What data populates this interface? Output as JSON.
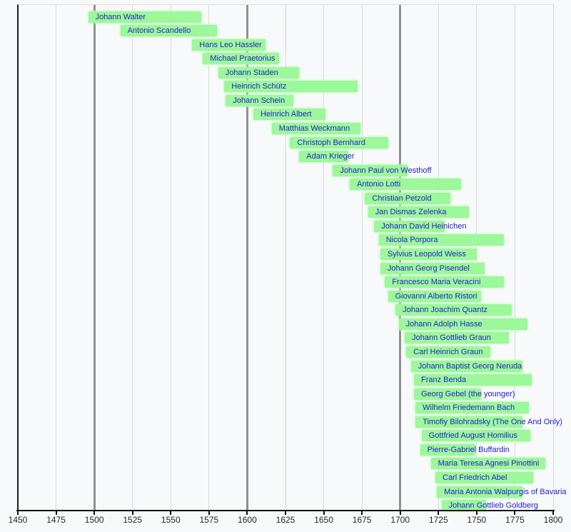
{
  "chart_data": {
    "type": "bar",
    "variant": "timeline-lifespan-gantt",
    "title": "",
    "xlabel": "",
    "ylabel": "",
    "x_axis": {
      "min": 1450,
      "max": 1800,
      "tick_interval": 25,
      "ticks": [
        1450,
        1475,
        1500,
        1525,
        1550,
        1575,
        1600,
        1625,
        1650,
        1675,
        1700,
        1725,
        1750,
        1775,
        1800
      ],
      "axis_line_year": 1450,
      "major_gridline_years": [
        1500,
        1600,
        1700
      ],
      "grid": true,
      "legend": "none"
    },
    "bars": [
      {
        "label": "Johann Walter",
        "start": 1496,
        "end": 1570
      },
      {
        "label": "Antonio Scandello",
        "start": 1517,
        "end": 1580
      },
      {
        "label": "Hans Leo Hassler",
        "start": 1564,
        "end": 1612
      },
      {
        "label": "Michael Praetorius",
        "start": 1571,
        "end": 1621
      },
      {
        "label": "Johann Staden",
        "start": 1581,
        "end": 1634
      },
      {
        "label": "Heinrich Schütz",
        "start": 1585,
        "end": 1672
      },
      {
        "label": "Johann Schein",
        "start": 1586,
        "end": 1630
      },
      {
        "label": "Heinrich Albert",
        "start": 1604,
        "end": 1651
      },
      {
        "label": "Matthias Weckmann",
        "start": 1616,
        "end": 1674
      },
      {
        "label": "Christoph Bernhard",
        "start": 1628,
        "end": 1692
      },
      {
        "label": "Adam Krieger",
        "start": 1634,
        "end": 1666
      },
      {
        "label": "Johann Paul von Westhoff",
        "start": 1656,
        "end": 1705
      },
      {
        "label": "Antonio Lotti",
        "start": 1667,
        "end": 1740
      },
      {
        "label": "Christian Petzold",
        "start": 1677,
        "end": 1733
      },
      {
        "label": "Jan Dismas Zelenka",
        "start": 1679,
        "end": 1745
      },
      {
        "label": "Johann David Heinichen",
        "start": 1683,
        "end": 1729
      },
      {
        "label": "Nicola Porpora",
        "start": 1686,
        "end": 1768
      },
      {
        "label": "Sylvius Leopold Weiss",
        "start": 1687,
        "end": 1750
      },
      {
        "label": "Johann Georg Pisendel",
        "start": 1687,
        "end": 1755
      },
      {
        "label": "Francesco Maria Veracini",
        "start": 1690,
        "end": 1768
      },
      {
        "label": "Giovanni Alberto Ristori",
        "start": 1692,
        "end": 1753
      },
      {
        "label": "Johann Joachim Quantz",
        "start": 1697,
        "end": 1773
      },
      {
        "label": "Johann Adolph Hasse",
        "start": 1699,
        "end": 1783
      },
      {
        "label": "Johann Gottlieb Graun",
        "start": 1703,
        "end": 1771
      },
      {
        "label": "Carl Heinrich Graun",
        "start": 1704,
        "end": 1759
      },
      {
        "label": "Johann Baptist Georg Neruda",
        "start": 1707,
        "end": 1780
      },
      {
        "label": "Franz Benda",
        "start": 1709,
        "end": 1786
      },
      {
        "label": "Georg Gebel (the younger)",
        "start": 1709,
        "end": 1753
      },
      {
        "label": "Wilhelm Friedemann Bach",
        "start": 1710,
        "end": 1784
      },
      {
        "label": "Timofiy Bilohradsky (The One And Only)",
        "start": 1710,
        "end": 1780
      },
      {
        "label": "Gottfried August Homilius",
        "start": 1714,
        "end": 1785
      },
      {
        "label": "Pierre-Gabriel Buffardin",
        "start": 1713,
        "end": 1749
      },
      {
        "label": "Maria Teresa Agnesi Pinottini",
        "start": 1720,
        "end": 1795
      },
      {
        "label": "Carl Friedrich Abel",
        "start": 1723,
        "end": 1787
      },
      {
        "label": "Maria Antonia Walpurgis of Bavaria",
        "start": 1724,
        "end": 1780
      },
      {
        "label": "Johann Gottlieb Goldberg",
        "start": 1727,
        "end": 1756
      }
    ]
  },
  "colors": {
    "background": "#f8f9fa",
    "bar_fill": "#9df79b",
    "bar_label_text": "#2222cc",
    "gridline_minor": "#d9dadb",
    "gridline_major": "#919191",
    "axis": "#111111",
    "tick_label_text": "#252525"
  }
}
